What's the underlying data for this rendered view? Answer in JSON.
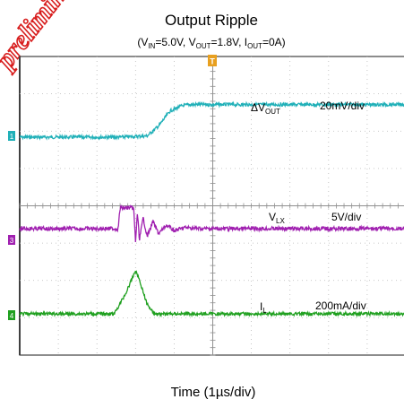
{
  "chart_data": {
    "type": "line",
    "title": "Output Ripple",
    "subtitle": {
      "open": "(V",
      "vin_sub": "IN",
      "vin_val": "=5.0V, V",
      "vout_sub": "OUT",
      "vout_val": "=1.8V, I",
      "iout_sub": "OUT",
      "iout_val": "=0A)"
    },
    "xlabel": "Time (1µs/div)",
    "grid": true,
    "x_divisions": 10,
    "y_divisions": 8,
    "watermark": "preliminary",
    "trigger_marker": "T",
    "colors": {
      "vout": "#20b0b8",
      "vlx": "#a020b0",
      "il": "#20a020",
      "grid": "#b8b8b8",
      "frame": "#404040"
    },
    "series": [
      {
        "name": "ΔV_OUT",
        "label_main": "ΔV",
        "label_sub": "OUT",
        "scale": "20mV/div",
        "channel": "1",
        "unit_per_div": "20mV",
        "x": [
          0,
          2.5,
          3.3,
          3.6,
          3.9,
          4.2,
          4.4,
          6,
          10
        ],
        "y": [
          0,
          0,
          0.05,
          0.45,
          1.05,
          1.25,
          1.3,
          1.3,
          1.3
        ]
      },
      {
        "name": "V_LX",
        "label_main": "V",
        "label_sub": "LX",
        "scale": "5V/div",
        "channel": "3",
        "unit_per_div": "5V",
        "x": [
          0,
          2.55,
          2.6,
          2.95,
          3.0,
          3.05,
          3.1,
          3.2,
          3.3,
          3.45,
          3.6,
          3.8,
          4.0,
          4.3,
          4.7,
          5.2,
          10
        ],
        "y": [
          0,
          0,
          1.05,
          1.05,
          -0.65,
          0.8,
          -0.55,
          0.55,
          -0.4,
          0.35,
          -0.25,
          0.18,
          -0.1,
          0.06,
          0,
          0,
          0
        ]
      },
      {
        "name": "I_L",
        "label_main": "I",
        "label_sub": "L",
        "scale": "200mA/div",
        "channel": "4",
        "unit_per_div": "200mA",
        "x": [
          0,
          2.45,
          2.75,
          3.0,
          3.1,
          3.3,
          3.5,
          10
        ],
        "y": [
          0,
          0,
          0.55,
          1.15,
          0.9,
          0.25,
          0,
          0
        ]
      }
    ]
  }
}
